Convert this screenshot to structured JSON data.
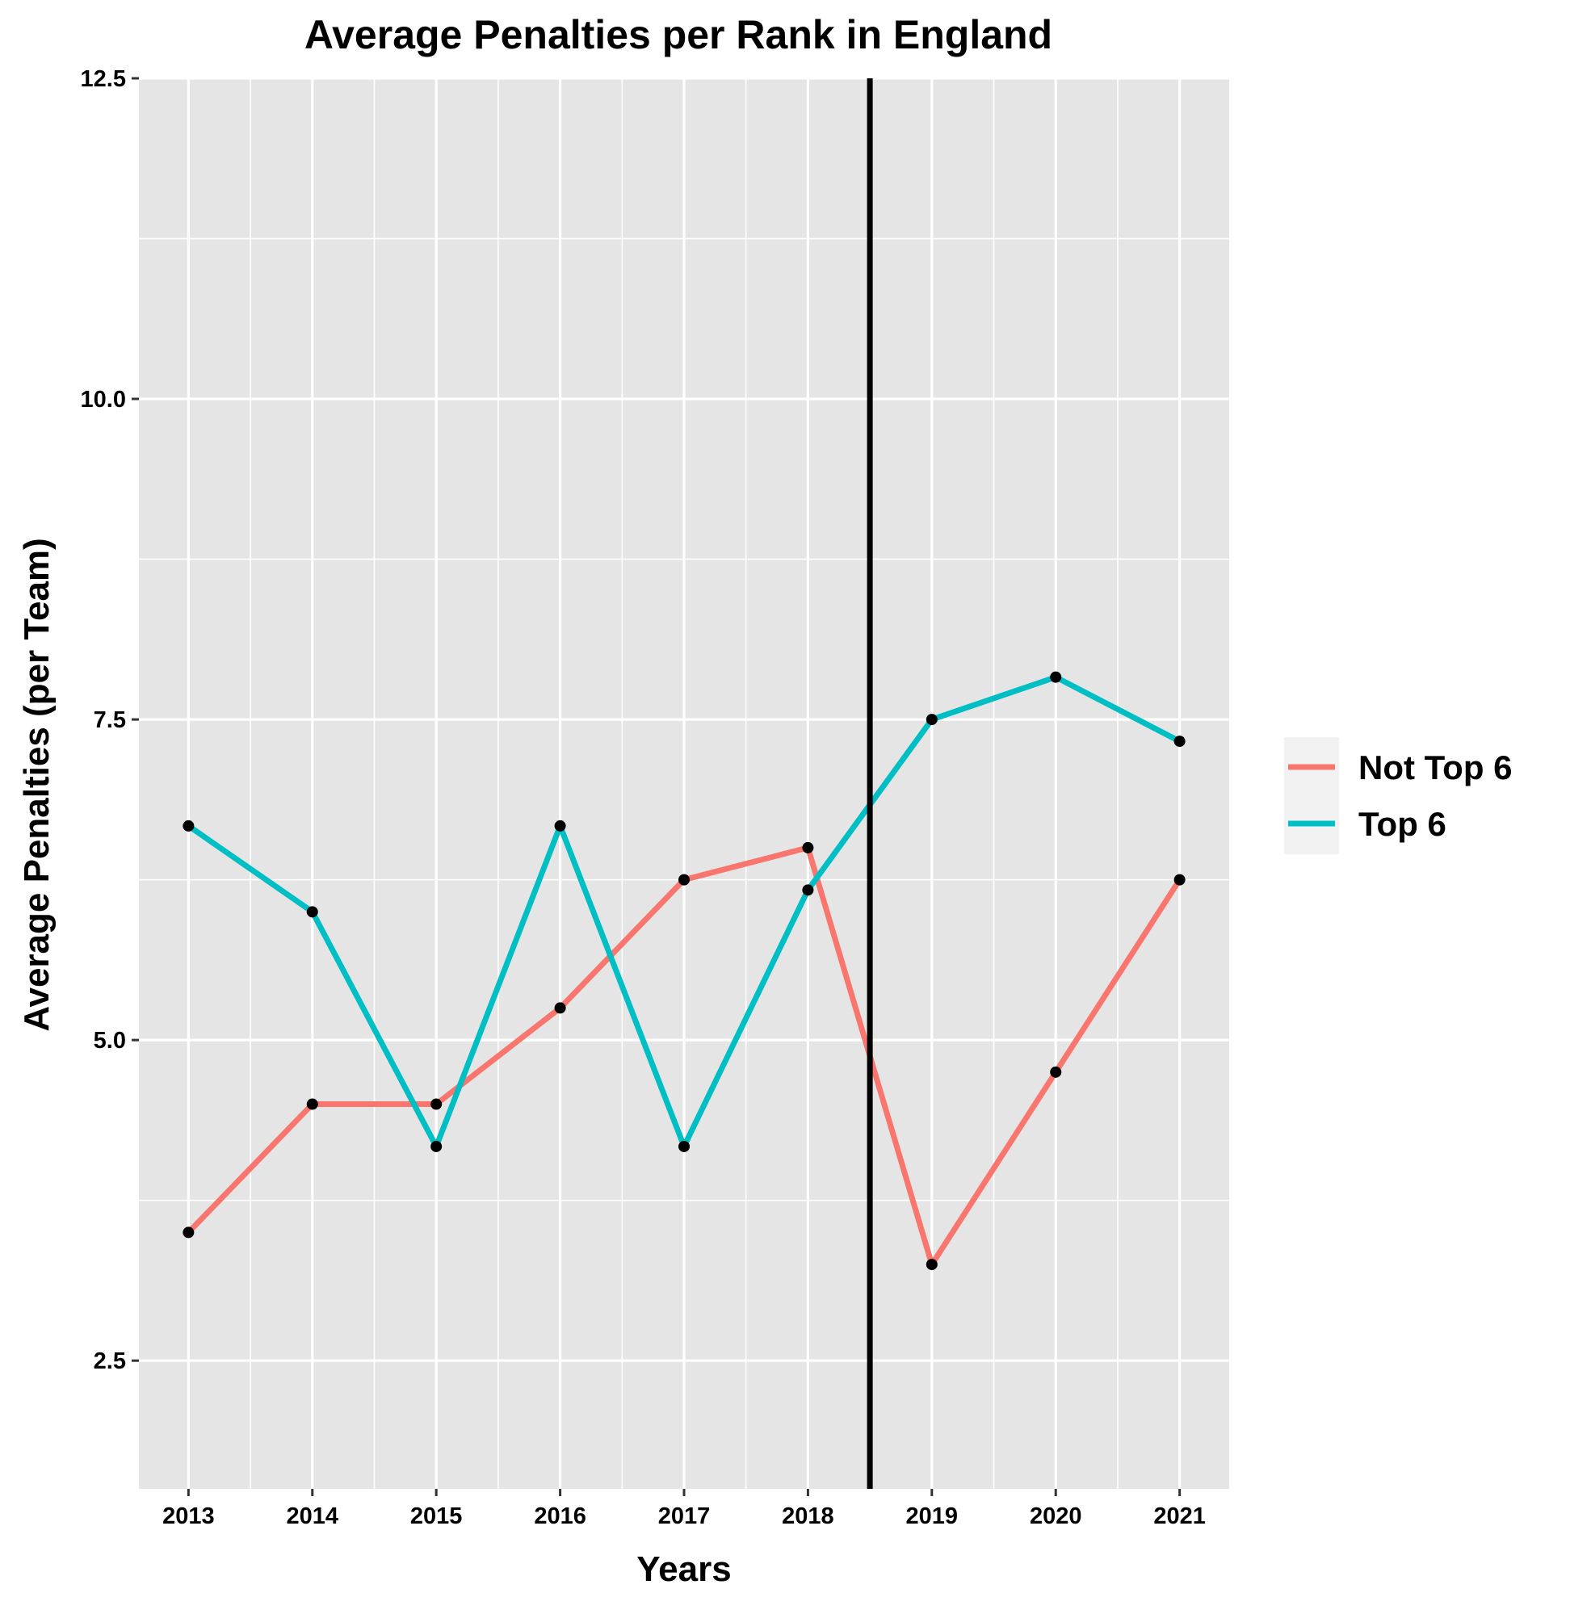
{
  "chart_data": {
    "type": "line",
    "title": "Average Penalties per Rank in England",
    "xlabel": "Years",
    "ylabel": "Average Penalties (per Team)",
    "categories": [
      "2013",
      "2014",
      "2015",
      "2016",
      "2017",
      "2018",
      "2019",
      "2020",
      "2021"
    ],
    "x": [
      2013,
      2014,
      2015,
      2016,
      2017,
      2018,
      2019,
      2020,
      2021
    ],
    "xlim": [
      2012.6,
      2021.4
    ],
    "ylim": [
      1.5,
      12.5
    ],
    "yticks": [
      2.5,
      5.0,
      7.5,
      10.0,
      12.5
    ],
    "ytick_labels": [
      "2.5",
      "5.0",
      "7.5",
      "10.0",
      "12.5"
    ],
    "grid": true,
    "vline_x": 2018.5,
    "legend_position": "right",
    "series": [
      {
        "name": "Not Top 6",
        "color": "#F8766D",
        "values": [
          3.5,
          4.5,
          4.5,
          5.25,
          6.25,
          6.5,
          3.25,
          4.75,
          6.25
        ]
      },
      {
        "name": "Top 6",
        "color": "#00BFC4",
        "values": [
          6.67,
          6.0,
          4.17,
          6.67,
          4.17,
          6.17,
          7.5,
          7.83,
          7.33
        ]
      }
    ]
  }
}
